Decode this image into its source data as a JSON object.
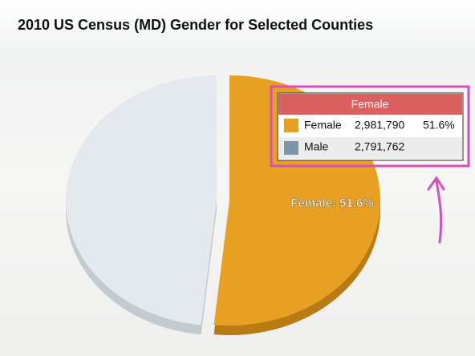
{
  "chart_data": {
    "type": "pie",
    "title": "2010 US Census (MD) Gender for Selected Counties",
    "categories": [
      "Female",
      "Male"
    ],
    "values": [
      2981790,
      2791762
    ],
    "value_labels": [
      "2,981,790",
      "2,791,762"
    ],
    "colors": [
      "#e8a023",
      "#e4e9ed"
    ],
    "side_colors": [
      "#b87a12",
      "#c3cad0"
    ],
    "legend_colors": [
      "#e8a023",
      "#7b98a6"
    ],
    "data_label": "Female: 51.6%",
    "tooltip": {
      "title": "Female",
      "percent_label": "51.6%"
    }
  }
}
